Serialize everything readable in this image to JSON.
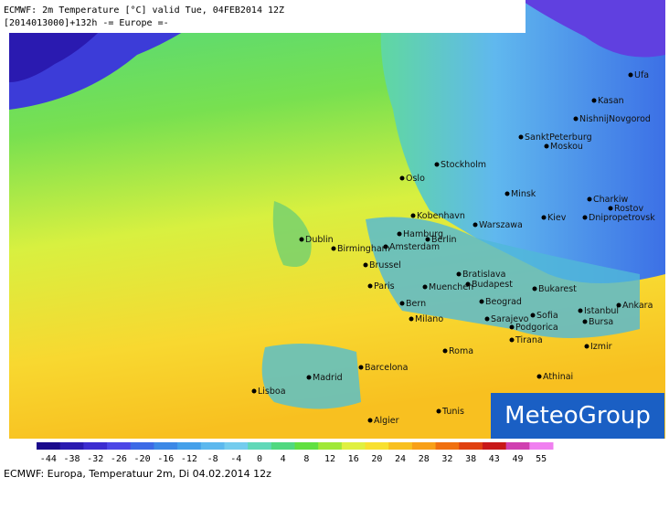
{
  "header": {
    "line1": "ECMWF: 2m Temperature [°C] valid Tue, 04FEB2014 12Z",
    "line2": "[2014013000]+132h -= Europe =-"
  },
  "cities": [
    "Oslo",
    "Stockholm",
    "SanktPeterburg",
    "Moskou",
    "Kasan",
    "NishnijNovgorod",
    "Ufa",
    "Minsk",
    "Kiev",
    "Charkiw",
    "Rostov",
    "Dnipropetrovsk",
    "Warszawa",
    "Kobenhavn",
    "Hamburg",
    "Berlin",
    "Amsterdam",
    "Dublin",
    "Birmingham",
    "Brussel",
    "Paris",
    "Bratislava",
    "Budapest",
    "Bukarest",
    "Muenchen",
    "Bern",
    "Milano",
    "Beograd",
    "Sarajevo",
    "Sofia",
    "Podgorica",
    "Istanbul",
    "Ankara",
    "Bursa",
    "Izmir",
    "Athinai",
    "Roma",
    "Tirana",
    "Barcelona",
    "Madrid",
    "Lisboa",
    "Algier",
    "Tunis"
  ],
  "colorbar": {
    "labels": [
      -44,
      -38,
      -32,
      -26,
      -20,
      -16,
      -12,
      -8,
      -4,
      0,
      4,
      8,
      12,
      16,
      20,
      24,
      28,
      32,
      38,
      43,
      49,
      55
    ],
    "colors": [
      "#1a0a8c",
      "#2a1ab0",
      "#3c2cd0",
      "#4c46e6",
      "#3c6ae6",
      "#3c88e6",
      "#44a0ea",
      "#5cb8ee",
      "#74ccee",
      "#60d8b8",
      "#50d880",
      "#60e040",
      "#a0e838",
      "#e0f040",
      "#f8e030",
      "#f8c020",
      "#f8a018",
      "#f07010",
      "#e04010",
      "#c81818",
      "#d040b0",
      "#f080f0"
    ]
  },
  "logo": "MeteoGroup",
  "footer": "ECMWF: Europa, Temperatuur 2m, Di 04.02.2014 12z"
}
